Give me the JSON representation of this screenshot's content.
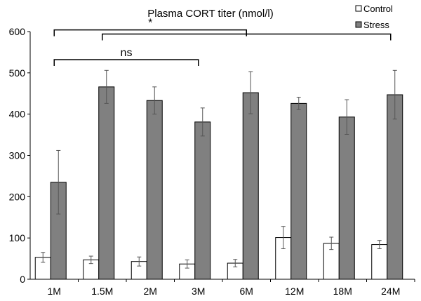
{
  "chart_data": {
    "type": "bar",
    "title": "Plasma CORT titer (nmol/l)",
    "xlabel": "",
    "ylabel": "",
    "ylim": [
      0,
      600
    ],
    "yticks": [
      0,
      100,
      200,
      300,
      400,
      500,
      600
    ],
    "categories": [
      "1M",
      "1.5M",
      "2M",
      "3M",
      "6M",
      "12M",
      "18M",
      "24M"
    ],
    "series": [
      {
        "name": "Control",
        "color": "#ffffff",
        "values": [
          53,
          47,
          43,
          37,
          39,
          101,
          87,
          84
        ],
        "errors": [
          12,
          9,
          11,
          10,
          9,
          27,
          15,
          10
        ]
      },
      {
        "name": "Stress",
        "color": "#808080",
        "values": [
          235,
          466,
          433,
          381,
          452,
          426,
          393,
          447
        ],
        "errors": [
          77,
          40,
          33,
          34,
          51,
          15,
          42,
          59
        ]
      }
    ],
    "legend_position": "top-right",
    "annotations": [
      {
        "label": "*",
        "from": 0,
        "to": 4,
        "level": 604
      },
      {
        "label": "*",
        "show_label": false,
        "from": 1,
        "to": 7,
        "level": 594
      },
      {
        "label": "ns",
        "from": 0,
        "to": 3,
        "level": 532
      }
    ]
  }
}
